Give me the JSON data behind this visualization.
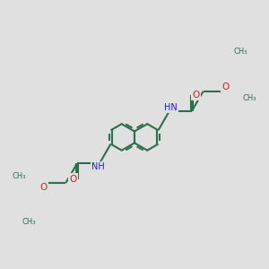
{
  "bg_color": "#e0e0e0",
  "bond_color": "#2d6e4e",
  "bond_width": 1.5,
  "N_color": "#2020cc",
  "O_color": "#cc2020",
  "figsize": [
    3.0,
    3.0
  ],
  "dpi": 100,
  "xlim": [
    -1.5,
    5.5
  ],
  "ylim": [
    -5.5,
    4.5
  ]
}
